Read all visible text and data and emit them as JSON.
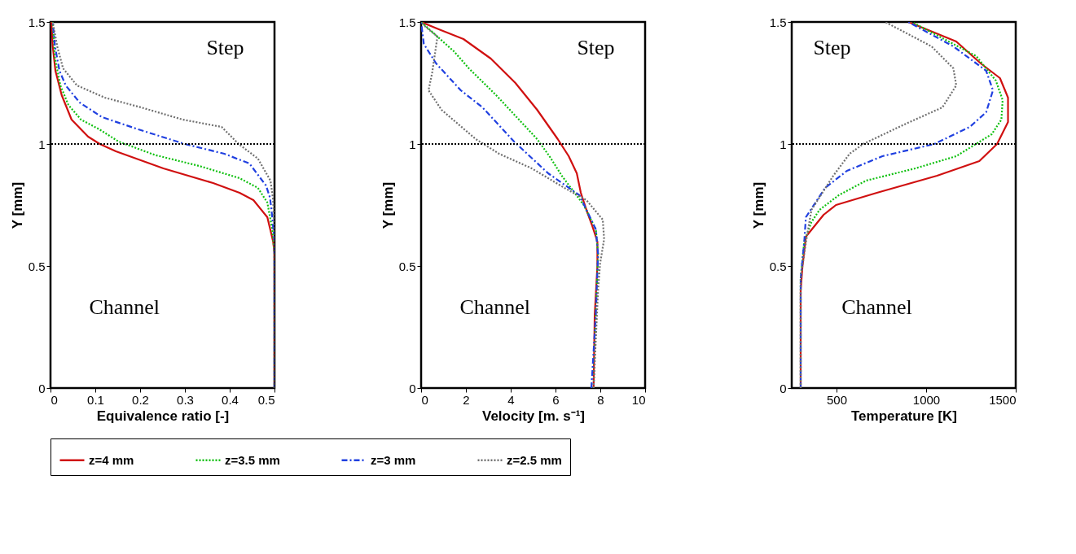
{
  "chart_data": [
    {
      "type": "line",
      "xlabel": "Equivalence ratio [-]",
      "ylabel": "Y [mm]",
      "xlim": [
        0,
        0.5
      ],
      "xticks": [
        0,
        0.1,
        0.2,
        0.3,
        0.4,
        0.5
      ],
      "ylim": [
        0,
        1.5
      ],
      "yticks": [
        0,
        0.5,
        1,
        1.5
      ],
      "legend": "bottom",
      "grid": false,
      "annotations": [
        "Step",
        "Channel"
      ],
      "ref_lines": [
        {
          "axis": "y",
          "value": 1,
          "color": "#000000",
          "line_style": "dotted"
        }
      ],
      "series": [
        {
          "name": "z=4 mm",
          "color": "#d01010",
          "line_style": "solid",
          "x": [
            0.5,
            0.5,
            0.5,
            0.497,
            0.484,
            0.453,
            0.422,
            0.363,
            0.252,
            0.146,
            0.11,
            0.084,
            0.047,
            0.025,
            0.011,
            0.005,
            0.002
          ],
          "values": [
            0,
            0.5,
            0.55,
            0.6,
            0.7,
            0.77,
            0.8,
            0.84,
            0.9,
            0.97,
            1.0,
            1.03,
            1.1,
            1.2,
            1.3,
            1.4,
            1.5
          ]
        },
        {
          "name": "z=3.5 mm",
          "color": "#10c010",
          "line_style": "dotted",
          "x": [
            0.5,
            0.5,
            0.495,
            0.484,
            0.463,
            0.422,
            0.332,
            0.233,
            0.152,
            0.109,
            0.068,
            0.04,
            0.022,
            0.01,
            0.005
          ],
          "values": [
            0,
            0.55,
            0.65,
            0.76,
            0.82,
            0.86,
            0.91,
            0.955,
            1.01,
            1.06,
            1.1,
            1.16,
            1.24,
            1.35,
            1.5
          ]
        },
        {
          "name": "z=3 mm",
          "color": "#2040e0",
          "line_style": "dashed",
          "x": [
            0.5,
            0.5,
            0.495,
            0.49,
            0.481,
            0.444,
            0.388,
            0.3,
            0.196,
            0.115,
            0.065,
            0.034,
            0.02,
            0.01,
            0.005
          ],
          "values": [
            0,
            0.6,
            0.7,
            0.78,
            0.83,
            0.92,
            0.96,
            1.0,
            1.06,
            1.11,
            1.17,
            1.24,
            1.3,
            1.4,
            1.5
          ]
        },
        {
          "name": "z=2.5 mm",
          "color": "#707070",
          "line_style": "dotted",
          "x": [
            0.5,
            0.5,
            0.497,
            0.491,
            0.463,
            0.42,
            0.382,
            0.295,
            0.202,
            0.121,
            0.059,
            0.028,
            0.015,
            0.005
          ],
          "values": [
            0,
            0.65,
            0.77,
            0.85,
            0.94,
            1.0,
            1.07,
            1.1,
            1.15,
            1.19,
            1.24,
            1.31,
            1.4,
            1.5
          ]
        }
      ]
    },
    {
      "type": "line",
      "xlabel": "Velocity [m. s⁻¹]",
      "ylabel": "Y [mm]",
      "xlim": [
        0,
        10
      ],
      "xticks": [
        0,
        2,
        4,
        6,
        8,
        10
      ],
      "ylim": [
        0,
        1.5
      ],
      "yticks": [
        0,
        0.5,
        1,
        1.5
      ],
      "legend": "bottom",
      "grid": false,
      "annotations": [
        "Step",
        "Channel"
      ],
      "ref_lines": [
        {
          "axis": "y",
          "value": 1,
          "color": "#000000",
          "line_style": "dotted"
        }
      ],
      "series": [
        {
          "name": "z=4 mm",
          "color": "#d01010",
          "line_style": "solid",
          "x": [
            7.7,
            7.75,
            7.87,
            7.87,
            7.62,
            7.38,
            7.13,
            6.95,
            6.59,
            6.1,
            5.18,
            4.21,
            3.11,
            1.89,
            0.79,
            0
          ],
          "values": [
            0,
            0.3,
            0.5,
            0.6,
            0.67,
            0.73,
            0.8,
            0.88,
            0.95,
            1.02,
            1.14,
            1.25,
            1.35,
            1.43,
            1.47,
            1.5
          ]
        },
        {
          "name": "z=3.5 mm",
          "color": "#10c010",
          "line_style": "dotted",
          "x": [
            7.7,
            7.8,
            7.9,
            7.8,
            7.26,
            6.28,
            5.73,
            5.18,
            4.57,
            3.35,
            2.13,
            1.46,
            0.85,
            0
          ],
          "values": [
            0,
            0.3,
            0.55,
            0.65,
            0.75,
            0.87,
            0.95,
            1.02,
            1.08,
            1.2,
            1.31,
            1.38,
            1.43,
            1.5
          ]
        },
        {
          "name": "z=3 mm",
          "color": "#2040e0",
          "line_style": "dashed",
          "x": [
            7.6,
            7.8,
            7.9,
            7.8,
            7.07,
            5.67,
            4.15,
            2.74,
            1.77,
            0.67,
            0.12,
            0
          ],
          "values": [
            0,
            0.3,
            0.55,
            0.65,
            0.79,
            0.88,
            1.01,
            1.15,
            1.22,
            1.33,
            1.41,
            1.5
          ]
        },
        {
          "name": "z=2.5 mm",
          "color": "#707070",
          "line_style": "dotted",
          "x": [
            7.7,
            7.9,
            7.99,
            8.17,
            8.11,
            7.38,
            6.4,
            4.94,
            3.48,
            2.44,
            0.91,
            0.33,
            0.49,
            0.73,
            0.2,
            0
          ],
          "values": [
            0,
            0.4,
            0.51,
            0.61,
            0.69,
            0.77,
            0.82,
            0.9,
            0.96,
            1.02,
            1.14,
            1.22,
            1.29,
            1.44,
            1.48,
            1.5
          ]
        }
      ]
    },
    {
      "type": "line",
      "xlabel": "Temperature [K]",
      "ylabel": "Y [mm]",
      "xlim": [
        250,
        1500
      ],
      "xticks": [
        500,
        1000,
        1500
      ],
      "ylim": [
        0,
        1.5
      ],
      "yticks": [
        0,
        0.5,
        1,
        1.5
      ],
      "legend": "bottom",
      "grid": false,
      "annotations": [
        "Step",
        "Channel"
      ],
      "ref_lines": [
        {
          "axis": "y",
          "value": 1,
          "color": "#000000",
          "line_style": "dotted"
        }
      ],
      "series": [
        {
          "name": "z=4 mm",
          "color": "#d01010",
          "line_style": "solid",
          "x": [
            300,
            300,
            310,
            329,
            428,
            497,
            588,
            725,
            1061,
            1297,
            1396,
            1457,
            1457,
            1412,
            1305,
            1168,
            901
          ],
          "values": [
            0,
            0.4,
            0.5,
            0.62,
            0.71,
            0.75,
            0.77,
            0.8,
            0.87,
            0.93,
            1.0,
            1.09,
            1.19,
            1.27,
            1.33,
            1.42,
            1.5
          ]
        },
        {
          "name": "z=3.5 mm",
          "color": "#10c010",
          "line_style": "dotted",
          "x": [
            300,
            300,
            320,
            360,
            405,
            512,
            665,
            939,
            1168,
            1366,
            1420,
            1427,
            1389,
            1280,
            920
          ],
          "values": [
            0,
            0.45,
            0.6,
            0.68,
            0.73,
            0.79,
            0.85,
            0.9,
            0.95,
            1.04,
            1.1,
            1.18,
            1.26,
            1.36,
            1.5
          ]
        },
        {
          "name": "z=3 mm",
          "color": "#2040e0",
          "line_style": "dashed",
          "x": [
            300,
            300,
            320,
            329,
            436,
            558,
            756,
            1046,
            1244,
            1335,
            1373,
            1335,
            1152,
            900
          ],
          "values": [
            0,
            0.45,
            0.6,
            0.7,
            0.82,
            0.89,
            0.95,
            1.0,
            1.07,
            1.13,
            1.22,
            1.3,
            1.4,
            1.5
          ]
        },
        {
          "name": "z=2.5 mm",
          "color": "#707070",
          "line_style": "dotted",
          "x": [
            300,
            300,
            330,
            360,
            482,
            573,
            649,
            878,
            1091,
            1168,
            1152,
            1030,
            771
          ],
          "values": [
            0,
            0.45,
            0.6,
            0.73,
            0.87,
            0.96,
            1.0,
            1.08,
            1.15,
            1.24,
            1.31,
            1.4,
            1.5
          ]
        }
      ]
    }
  ]
}
